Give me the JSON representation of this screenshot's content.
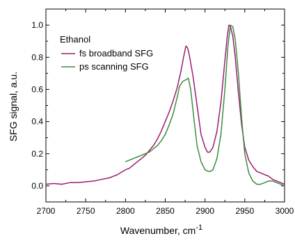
{
  "chart_data": {
    "type": "line",
    "title": "",
    "xlabel": "Wavenumber, cm",
    "xlabel_superscript": "-1",
    "ylabel": "SFG signal, a.u.",
    "xlim": [
      2700,
      3000
    ],
    "ylim": [
      -0.1,
      1.1
    ],
    "x_ticks": [
      2700,
      2750,
      2800,
      2850,
      2900,
      2950,
      3000
    ],
    "y_ticks": [
      0.0,
      0.2,
      0.4,
      0.6,
      0.8,
      1.0
    ],
    "x_tick_labels": [
      "2700",
      "2750",
      "2800",
      "2850",
      "2900",
      "2950",
      "3000"
    ],
    "y_tick_labels": [
      "0.0",
      "0.2",
      "0.4",
      "0.6",
      "0.8",
      "1.0"
    ],
    "grid": false,
    "legend": {
      "title": "Ethanol",
      "placement": "top-left"
    },
    "series": [
      {
        "name": "fs broadband SFG",
        "color": "#9b1b72",
        "x": [
          2700,
          2710,
          2720,
          2730,
          2740,
          2750,
          2760,
          2770,
          2780,
          2790,
          2800,
          2805,
          2810,
          2815,
          2820,
          2825,
          2830,
          2835,
          2840,
          2845,
          2850,
          2855,
          2860,
          2865,
          2870,
          2873,
          2876,
          2878,
          2880,
          2885,
          2890,
          2895,
          2900,
          2903,
          2906,
          2910,
          2915,
          2920,
          2925,
          2928,
          2930,
          2932,
          2935,
          2938,
          2942,
          2946,
          2950,
          2955,
          2960,
          2965,
          2970,
          2975,
          2980,
          2985,
          2990,
          2995,
          3000
        ],
        "y": [
          0.01,
          0.015,
          0.01,
          0.02,
          0.02,
          0.025,
          0.03,
          0.04,
          0.05,
          0.07,
          0.1,
          0.11,
          0.13,
          0.15,
          0.17,
          0.19,
          0.22,
          0.25,
          0.29,
          0.34,
          0.4,
          0.46,
          0.53,
          0.61,
          0.72,
          0.8,
          0.87,
          0.86,
          0.82,
          0.68,
          0.5,
          0.32,
          0.24,
          0.21,
          0.21,
          0.24,
          0.34,
          0.52,
          0.78,
          0.93,
          1.0,
          0.99,
          0.93,
          0.8,
          0.58,
          0.38,
          0.24,
          0.16,
          0.12,
          0.09,
          0.08,
          0.07,
          0.06,
          0.04,
          0.03,
          0.02,
          0.01
        ]
      },
      {
        "name": "ps scanning SFG",
        "color": "#3c8c3c",
        "x": [
          2800,
          2805,
          2810,
          2815,
          2820,
          2825,
          2830,
          2835,
          2840,
          2845,
          2850,
          2855,
          2860,
          2865,
          2868,
          2872,
          2876,
          2879,
          2882,
          2886,
          2890,
          2895,
          2900,
          2904,
          2907,
          2910,
          2915,
          2920,
          2925,
          2929,
          2932,
          2935,
          2938,
          2942,
          2946,
          2950,
          2955,
          2960,
          2965,
          2970,
          2975,
          2980,
          2985,
          2990,
          2995,
          3000
        ],
        "y": [
          0.15,
          0.16,
          0.17,
          0.18,
          0.19,
          0.2,
          0.21,
          0.23,
          0.25,
          0.28,
          0.32,
          0.38,
          0.45,
          0.55,
          0.62,
          0.65,
          0.66,
          0.67,
          0.6,
          0.42,
          0.25,
          0.15,
          0.1,
          0.09,
          0.09,
          0.1,
          0.17,
          0.32,
          0.6,
          0.88,
          1.0,
          0.99,
          0.91,
          0.7,
          0.42,
          0.2,
          0.08,
          0.03,
          0.01,
          0.01,
          0.02,
          0.03,
          0.03,
          0.02,
          0.01,
          0.0
        ]
      }
    ]
  }
}
